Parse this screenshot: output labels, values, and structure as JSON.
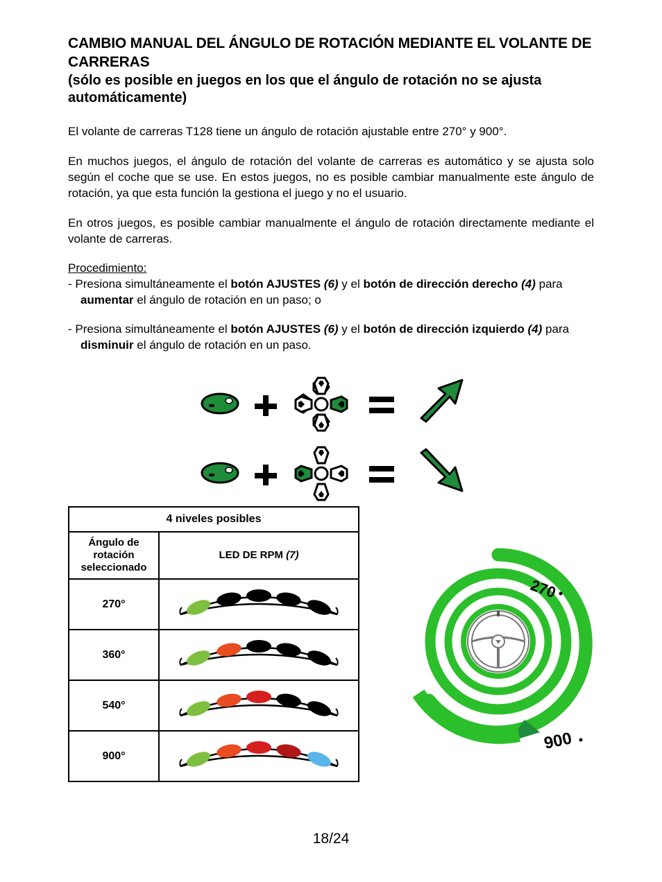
{
  "title": {
    "main": "CAMBIO MANUAL DEL ÁNGULO DE ROTACIÓN MEDIANTE EL VOLANTE DE CARRERAS",
    "sub": "(sólo es posible en juegos en los que el ángulo de rotación no se ajusta automáticamente)"
  },
  "paragraphs": {
    "p1": "El volante de carreras T128 tiene un ángulo de rotación ajustable entre 270° y 900°.",
    "p2": "En muchos juegos, el ángulo de rotación del volante de carreras es automático y se ajusta solo según el coche que se use. En estos juegos, no es posible cambiar manualmente este ángulo de rotación, ya que esta función la gestiona el juego y no el usuario.",
    "p3": "En otros juegos, es posible cambiar manualmente el ángulo de rotación directamente mediante el volante de carreras."
  },
  "procedure": {
    "heading": "Procedimiento:",
    "item1": {
      "t1": "- Presiona simultáneamente el ",
      "b1": "botón AJUSTES ",
      "bi1": "(6)",
      "t2": " y el ",
      "b2": "botón de dirección derecho ",
      "bi2": "(4)",
      "t3": " para ",
      "b3": "aumentar",
      "t4": " el ángulo de rotación en un paso; o"
    },
    "item2": {
      "t1": "- Presiona simultáneamente el ",
      "b1": "botón AJUSTES ",
      "bi1": "(6)",
      "t2": " y el ",
      "b2": "botón de dirección izquierdo ",
      "bi2": "(4)",
      "t3": " para ",
      "b3": "disminuir",
      "t4": " el ángulo de rotación en un paso."
    }
  },
  "table": {
    "header_main": "4 niveles posibles",
    "col1": "Ángulo de rotación seleccionado",
    "col2_a": "LED DE RPM ",
    "col2_b": "(7)",
    "rows": [
      {
        "angle": "270°",
        "leds": [
          "#7fbf3f",
          "#000000",
          "#000000",
          "#000000",
          "#000000"
        ]
      },
      {
        "angle": "360°",
        "leds": [
          "#7fbf3f",
          "#e84c1f",
          "#000000",
          "#000000",
          "#000000"
        ]
      },
      {
        "angle": "540°",
        "leds": [
          "#7fbf3f",
          "#e84c1f",
          "#d61f1f",
          "#000000",
          "#000000"
        ]
      },
      {
        "angle": "900°",
        "leds": [
          "#7fbf3f",
          "#e84c1f",
          "#d61f1f",
          "#b01717",
          "#5ab5e8"
        ]
      }
    ]
  },
  "diagram": {
    "settings_btn_color": "#1e8c3a",
    "dpad_right_color": "#1e8c3a",
    "dpad_left_color": "#1e8c3a",
    "arrow_up_color": "#1e8c3a",
    "arrow_down_color": "#1e8c3a"
  },
  "spiral": {
    "color": "#2bbf2b",
    "arrow_color": "#1e8c3a",
    "label_top": "270°",
    "label_bottom": "900°"
  },
  "page_number": "18/24"
}
